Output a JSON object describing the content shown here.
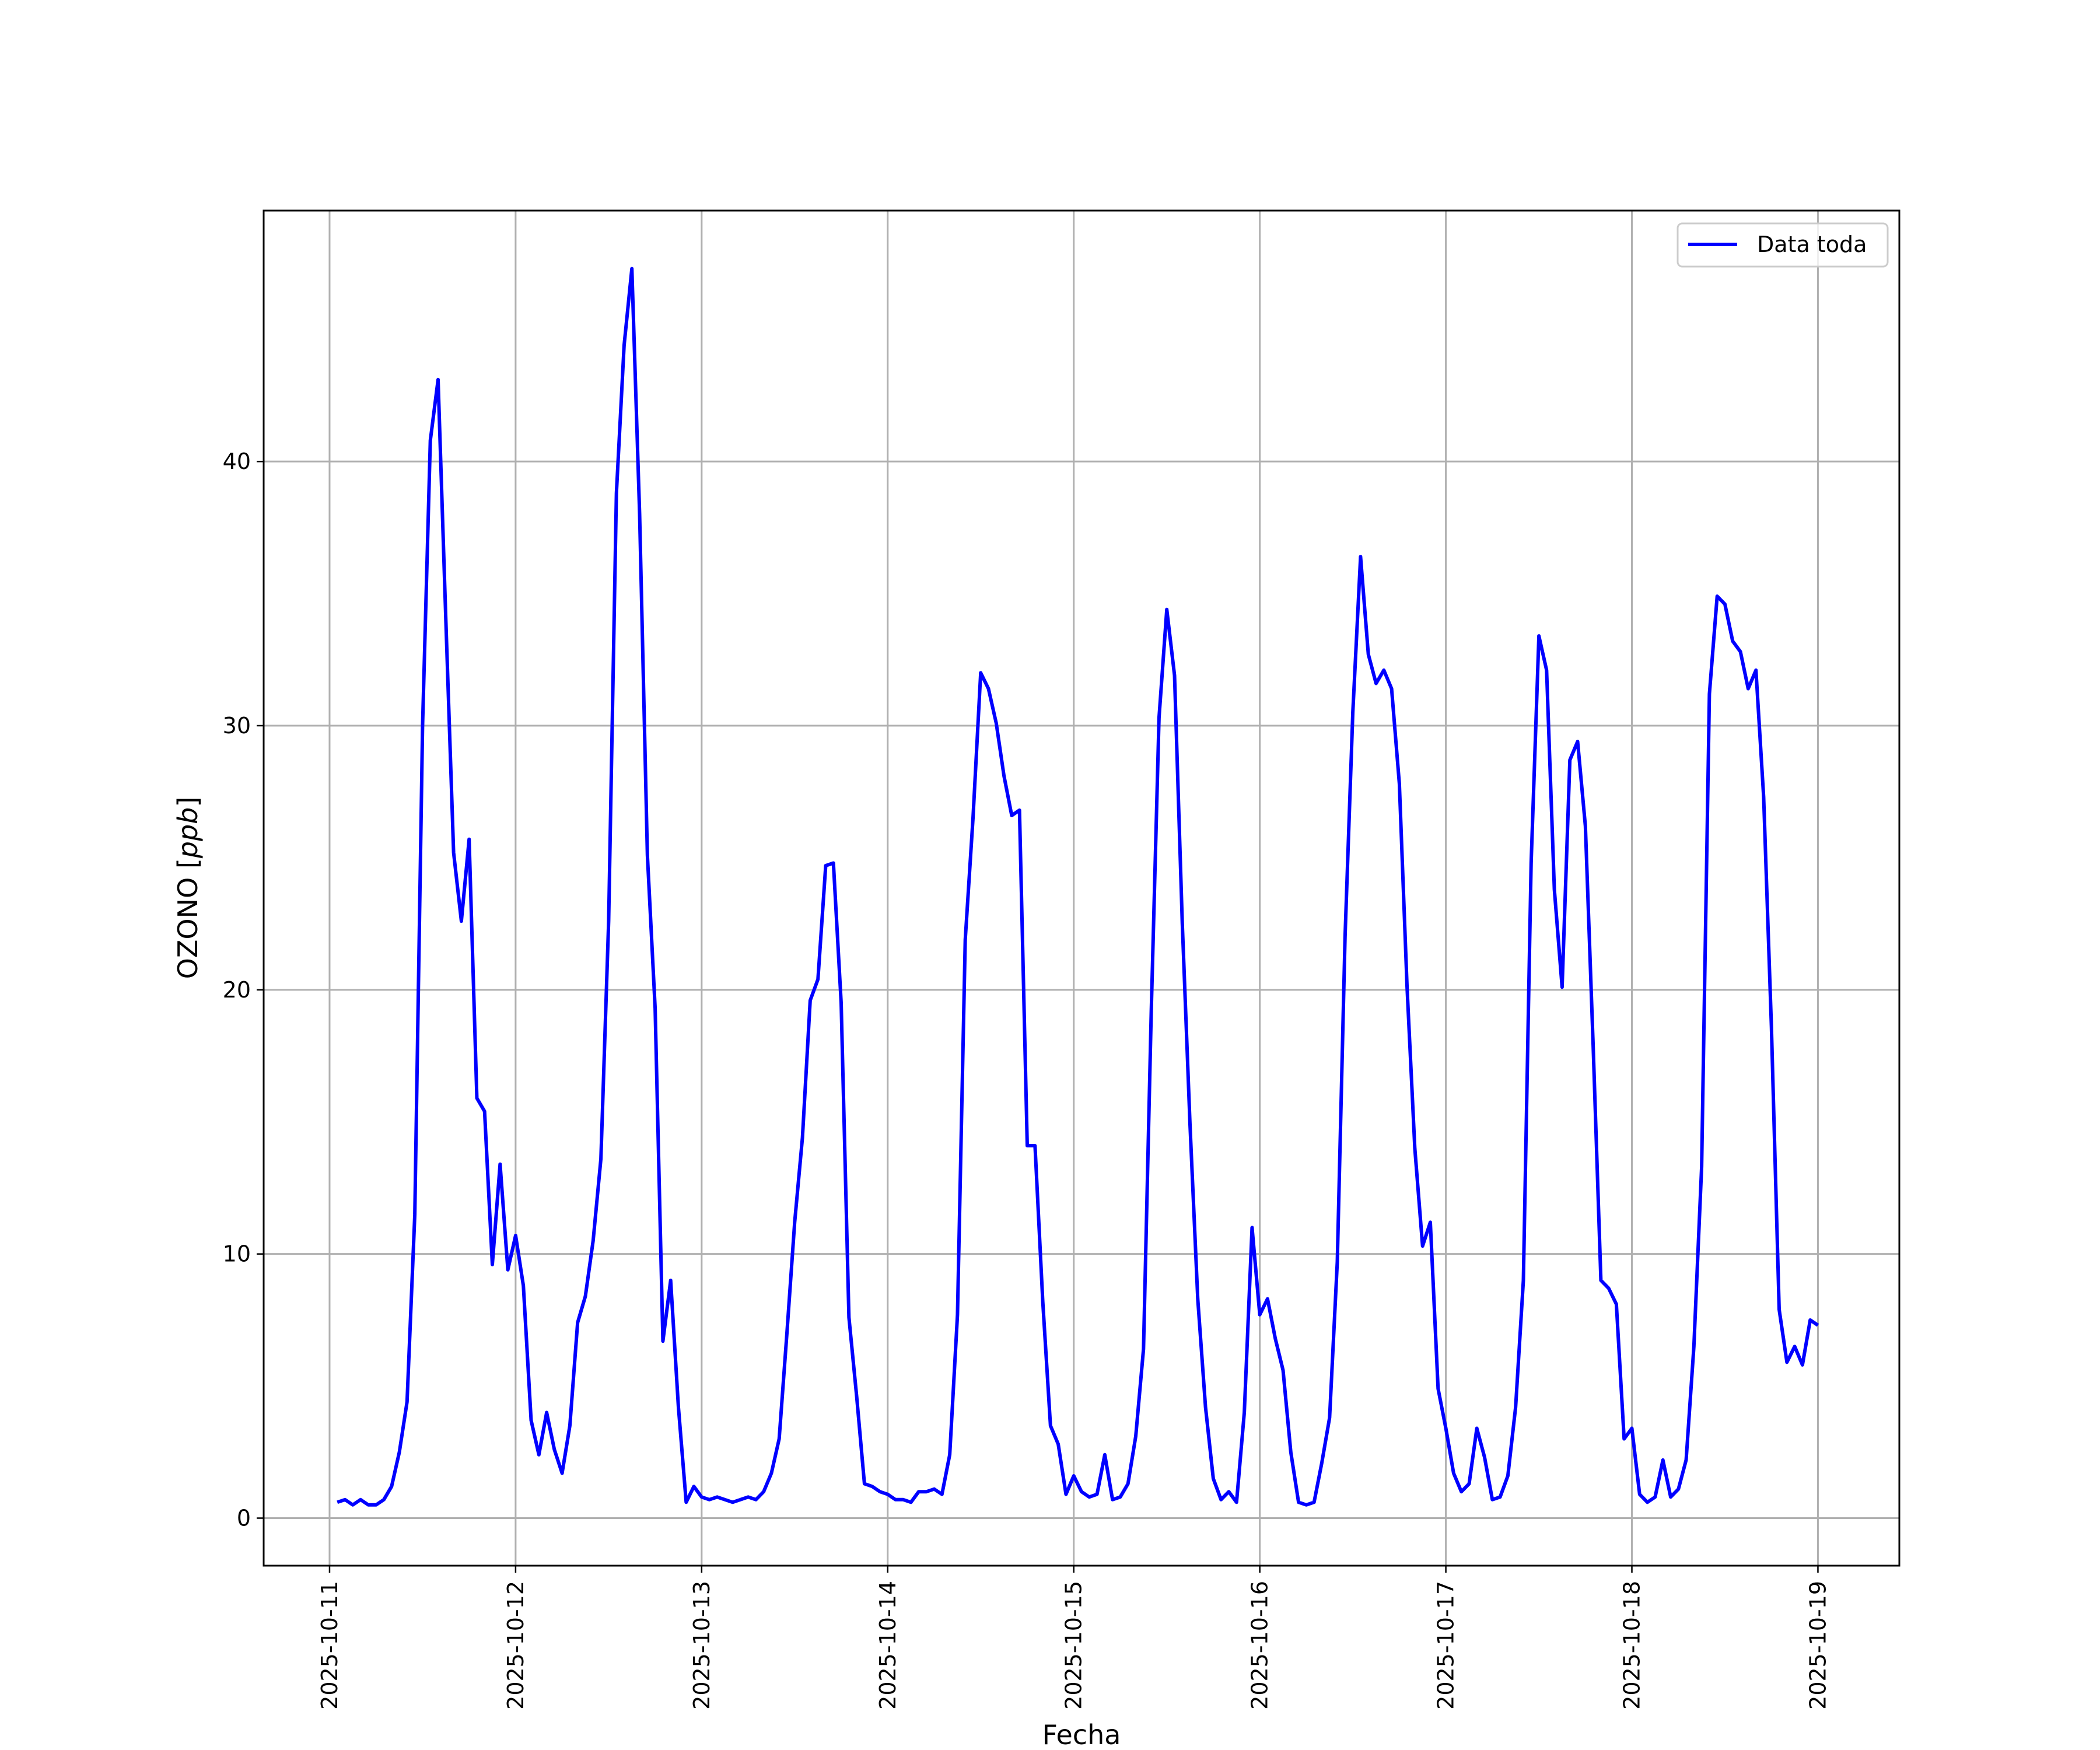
{
  "chart_data": {
    "type": "line",
    "xlabel": "Fecha",
    "ylabel": "OZONO [ppb]",
    "ylabel_main": "OZONO",
    "ylabel_unit": "ppb",
    "x_ticks": [
      "2025-10-11",
      "2025-10-12",
      "2025-10-13",
      "2025-10-14",
      "2025-10-15",
      "2025-10-16",
      "2025-10-17",
      "2025-10-18",
      "2025-10-19"
    ],
    "y_ticks": [
      0,
      10,
      20,
      30,
      40
    ],
    "xlim": [
      "2025-10-10 15:30",
      "2025-10-19 10:30"
    ],
    "ylim": [
      -1.8,
      49.5
    ],
    "grid": true,
    "legend_position": "top-right",
    "series": [
      {
        "name": "Data toda",
        "color": "#0000ff",
        "x_start": "2025-10-11 01:00",
        "x_step_hours": 1,
        "values": [
          0.6,
          0.7,
          0.5,
          0.7,
          0.5,
          0.5,
          0.7,
          1.2,
          2.5,
          4.4,
          11.5,
          30,
          40.8,
          43.1,
          34,
          25.2,
          22.6,
          25.7,
          15.9,
          15.4,
          9.6,
          13.4,
          9.4,
          10.7,
          8.8,
          3.7,
          2.4,
          4,
          2.6,
          1.7,
          3.5,
          7.4,
          8.4,
          10.5,
          13.6,
          22.6,
          38.8,
          44.4,
          47.3,
          38,
          25.1,
          19.3,
          6.7,
          9,
          4.2,
          0.6,
          1.2,
          0.8,
          0.7,
          0.8,
          0.7,
          0.6,
          0.7,
          0.8,
          0.7,
          1,
          1.7,
          3,
          7,
          11.2,
          14.4,
          19.6,
          20.4,
          24.7,
          24.8,
          19.5,
          7.6,
          4.6,
          1.3,
          1.2,
          1,
          0.9,
          0.7,
          0.7,
          0.6,
          1,
          1,
          1.1,
          0.9,
          2.4,
          7.7,
          21.9,
          26.5,
          32,
          31.4,
          30.1,
          28.1,
          26.6,
          26.8,
          14.1,
          14.1,
          8.2,
          3.5,
          2.8,
          0.9,
          1.6,
          1,
          0.8,
          0.9,
          2.4,
          0.7,
          0.8,
          1.3,
          3.1,
          6.4,
          19.2,
          30.3,
          34.4,
          31.9,
          22.5,
          14.9,
          8.3,
          4.2,
          1.5,
          0.7,
          1,
          0.6,
          4,
          11,
          7.7,
          8.3,
          6.8,
          5.6,
          2.5,
          0.6,
          0.5,
          0.6,
          2.1,
          3.8,
          9.7,
          22,
          30.5,
          36.4,
          32.7,
          31.6,
          32.1,
          31.4,
          27.8,
          20.1,
          14,
          10.3,
          11.2,
          4.9,
          3.4,
          1.7,
          1,
          1.3,
          3.4,
          2.3,
          0.7,
          0.8,
          1.6,
          4.2,
          9,
          24.8,
          33.4,
          32.1,
          23.8,
          20.1,
          28.7,
          29.4,
          26.2,
          17.9,
          9,
          8.7,
          8.1,
          3,
          3.4,
          0.9,
          0.6,
          0.8,
          2.2,
          0.8,
          1.1,
          2.2,
          6.5,
          13.3,
          31.2,
          34.9,
          34.6,
          33.2,
          32.8,
          31.4,
          32.1,
          27.3,
          18.6,
          7.9,
          5.9,
          6.5,
          5.8,
          7.5,
          7.3
        ]
      }
    ]
  }
}
